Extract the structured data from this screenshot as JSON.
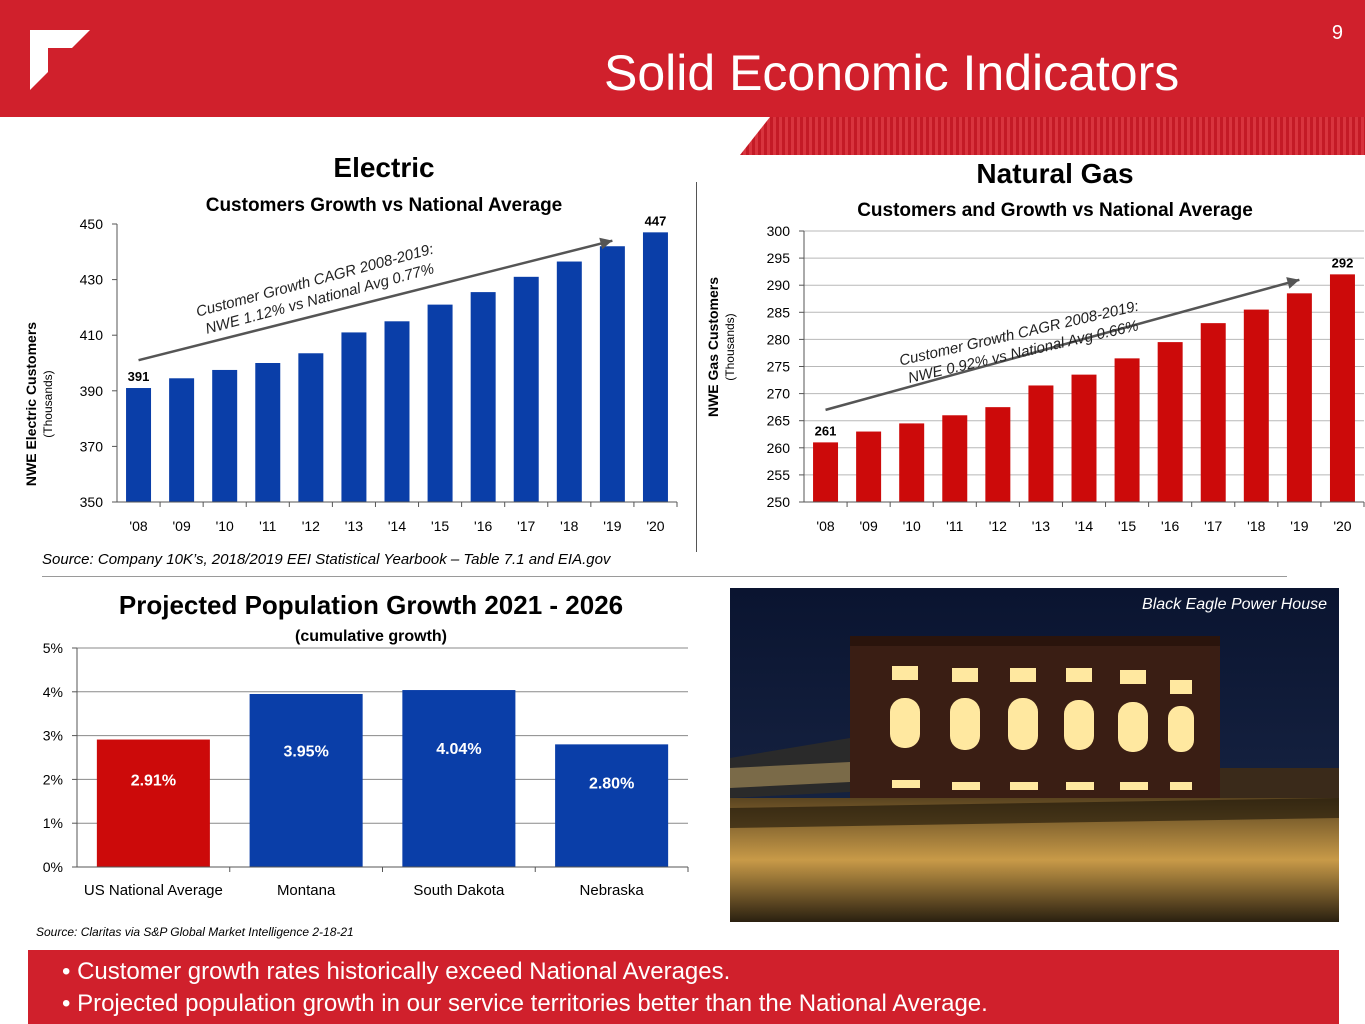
{
  "slide": {
    "page_number": "9",
    "title": "Solid Economic Indicators"
  },
  "electric": {
    "title": "Electric",
    "subtitle": "Customers Growth vs National Average",
    "ylabel": "NWE Electric Customers",
    "ylabel_sub": "(Thousands)",
    "annotation_line1": "Customer Growth CAGR 2008-2019:",
    "annotation_line2": "NWE 1.12% vs National Avg 0.77%",
    "first_label": "391",
    "last_label": "447"
  },
  "gas": {
    "title": "Natural Gas",
    "subtitle": "Customers and Growth vs National Average",
    "ylabel": "NWE Gas Customers",
    "ylabel_sub": "(Thousands)",
    "annotation_line1": "Customer Growth CAGR 2008-2019:",
    "annotation_line2": "NWE 0.92% vs National Avg 0.66%",
    "first_label": "261",
    "last_label": "292"
  },
  "population": {
    "title": "Projected Population Growth 2021 - 2026",
    "subtitle": "(cumulative growth)"
  },
  "sources": {
    "customers": "Source:  Company 10K’s, 2018/2019 EEI Statistical Yearbook – Table 7.1 and EIA.gov",
    "population": "Source:  Claritas via S&P Global Market Intelligence 2-18-21"
  },
  "photo": {
    "caption": "Black Eagle Power House"
  },
  "bullets": [
    "• Customer growth rates historically exceed National Averages.",
    "• Projected population growth in our service territories better than the National Average."
  ],
  "colors": {
    "brand_red": "#d0202c",
    "electric_blue": "#0a3ea8",
    "gas_red": "#cc0a0a",
    "pop_red": "#cc0a0a",
    "pop_blue": "#0a3ea8"
  },
  "chart_data": [
    {
      "type": "bar",
      "title": "Electric",
      "subtitle": "Customers Growth vs National Average",
      "categories": [
        "'08",
        "'09",
        "'10",
        "'11",
        "'12",
        "'13",
        "'14",
        "'15",
        "'16",
        "'17",
        "'18",
        "'19",
        "'20"
      ],
      "values": [
        391,
        394.5,
        397.5,
        400,
        403.5,
        411,
        415,
        421,
        425.5,
        431,
        436.5,
        442,
        447
      ],
      "ylim": [
        350,
        450
      ],
      "yticks": [
        350,
        370,
        390,
        410,
        430,
        450
      ],
      "ytick_labels": [
        "350",
        "370",
        "390",
        "410",
        "430",
        "450"
      ],
      "xlabel": "",
      "ylabel": "NWE Electric Customers (Thousands)",
      "data_labels": {
        "0": "391",
        "12": "447"
      },
      "trend_arrow": {
        "from": [
          "'08",
          401
        ],
        "to": [
          "'19",
          444
        ]
      }
    },
    {
      "type": "bar",
      "title": "Natural Gas",
      "subtitle": "Customers and Growth vs National Average",
      "categories": [
        "'08",
        "'09",
        "'10",
        "'11",
        "'12",
        "'13",
        "'14",
        "'15",
        "'16",
        "'17",
        "'18",
        "'19",
        "'20"
      ],
      "values": [
        261,
        263,
        264.5,
        266,
        267.5,
        271.5,
        273.5,
        276.5,
        279.5,
        283,
        285.5,
        288.5,
        292
      ],
      "ylim": [
        250,
        300
      ],
      "yticks": [
        250,
        255,
        260,
        265,
        270,
        275,
        280,
        285,
        290,
        295,
        300
      ],
      "ytick_labels": [
        "250",
        "255",
        "260",
        "265",
        "270",
        "275",
        "280",
        "285",
        "290",
        "295",
        "300"
      ],
      "xlabel": "",
      "ylabel": "NWE Gas Customers (Thousands)",
      "data_labels": {
        "0": "261",
        "12": "292"
      },
      "trend_arrow": {
        "from": [
          "'08",
          267
        ],
        "to": [
          "'19",
          291
        ]
      }
    },
    {
      "type": "bar",
      "title": "Projected Population Growth 2021 - 2026",
      "subtitle": "(cumulative growth)",
      "categories": [
        "US National Average",
        "Montana",
        "South Dakota",
        "Nebraska"
      ],
      "values": [
        2.91,
        3.95,
        4.04,
        2.8
      ],
      "value_labels": [
        "2.91%",
        "3.95%",
        "4.04%",
        "2.80%"
      ],
      "ylim": [
        0,
        5
      ],
      "yticks": [
        0,
        1,
        2,
        3,
        4,
        5
      ],
      "ytick_labels": [
        "0%",
        "1%",
        "2%",
        "3%",
        "4%",
        "5%"
      ],
      "xlabel": "",
      "ylabel": ""
    }
  ]
}
